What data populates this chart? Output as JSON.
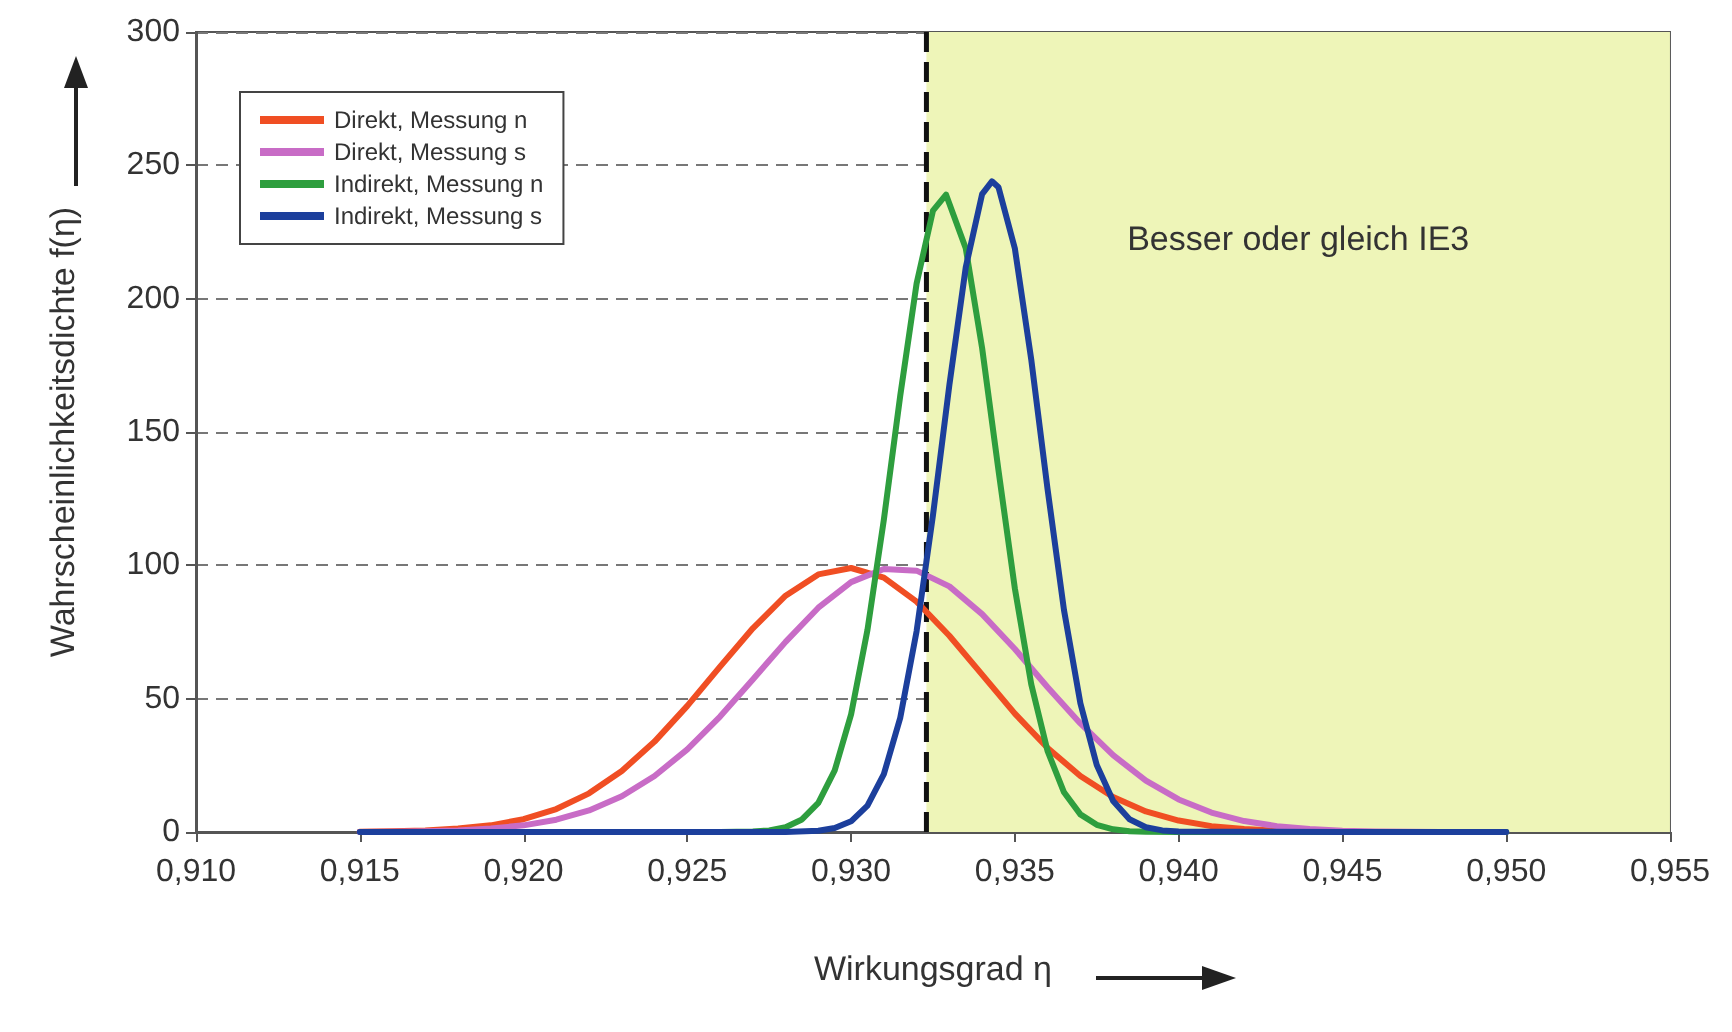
{
  "chart_data": {
    "type": "line",
    "xlabel": "Wirkungsgrad η",
    "ylabel": "Wahrscheinlichkeitsdichte f(η)",
    "xlim": [
      0.91,
      0.955
    ],
    "xticks": [
      {
        "value": 0.91,
        "label": "0,910"
      },
      {
        "value": 0.915,
        "label": "0,915"
      },
      {
        "value": 0.92,
        "label": "0,920"
      },
      {
        "value": 0.925,
        "label": "0,925"
      },
      {
        "value": 0.93,
        "label": "0,930"
      },
      {
        "value": 0.935,
        "label": "0,935"
      },
      {
        "value": 0.94,
        "label": "0,940"
      },
      {
        "value": 0.945,
        "label": "0,945"
      },
      {
        "value": 0.95,
        "label": "0,950"
      },
      {
        "value": 0.955,
        "label": "0,955"
      }
    ],
    "ylim": [
      0,
      300
    ],
    "yticks": [
      0,
      50,
      100,
      150,
      200,
      250,
      300
    ],
    "grid": "y",
    "legend": "top left",
    "marker": "none",
    "line_style": "solid",
    "series": [
      {
        "name": "Direkt, Messung n",
        "color": "#f04e23",
        "x": [
          0.915,
          0.916,
          0.917,
          0.918,
          0.919,
          0.92,
          0.921,
          0.922,
          0.923,
          0.924,
          0.925,
          0.926,
          0.927,
          0.928,
          0.929,
          0.93,
          0.931,
          0.932,
          0.933,
          0.934,
          0.935,
          0.936,
          0.937,
          0.938,
          0.939,
          0.94,
          0.941,
          0.942,
          0.943,
          0.944
        ],
        "values": [
          0.1,
          0.3,
          0.6,
          1.3,
          2.5,
          4.8,
          8.6,
          14.5,
          22.9,
          33.9,
          47.3,
          62,
          76.4,
          88.6,
          96.6,
          99,
          95.4,
          86.4,
          73.6,
          59,
          44.4,
          31.5,
          21,
          13.1,
          7.7,
          4.3,
          2.2,
          1.1,
          0.5,
          0.2
        ]
      },
      {
        "name": "Direkt, Messung s",
        "color": "#c86cc6",
        "x": [
          0.915,
          0.916,
          0.917,
          0.918,
          0.919,
          0.92,
          0.921,
          0.922,
          0.923,
          0.924,
          0.925,
          0.926,
          0.927,
          0.928,
          0.929,
          0.93,
          0.931,
          0.932,
          0.933,
          0.934,
          0.935,
          0.936,
          0.937,
          0.938,
          0.939,
          0.94,
          0.941,
          0.942,
          0.943,
          0.944,
          0.945,
          0.946,
          0.947,
          0.948,
          0.95
        ],
        "values": [
          0,
          0.1,
          0.3,
          0.6,
          1.3,
          2.5,
          4.6,
          8.1,
          13.4,
          21,
          31,
          43.3,
          57.2,
          71.3,
          84.1,
          93.7,
          98.6,
          98,
          92.1,
          81.7,
          68.6,
          54.3,
          40.7,
          28.8,
          19.3,
          12.2,
          7.3,
          4.1,
          2.2,
          1.1,
          0.5,
          0.2,
          0.1,
          0,
          0
        ]
      },
      {
        "name": "Indirekt, Messung n",
        "color": "#2e9e3e",
        "x": [
          0.926,
          0.927,
          0.9275,
          0.928,
          0.9285,
          0.929,
          0.9295,
          0.93,
          0.9305,
          0.931,
          0.9315,
          0.932,
          0.9325,
          0.9329,
          0.9335,
          0.934,
          0.9345,
          0.935,
          0.9355,
          0.936,
          0.9365,
          0.937,
          0.9375,
          0.938,
          0.9385,
          0.939,
          0.94,
          0.945,
          0.95
        ],
        "values": [
          0,
          0.2,
          0.6,
          1.8,
          4.7,
          10.9,
          23.1,
          44.1,
          75.8,
          117.1,
          163.6,
          205.7,
          233,
          239,
          218.9,
          181.5,
          135.6,
          91.3,
          55.4,
          30.3,
          14.9,
          6.6,
          2.7,
          1,
          0.3,
          0.1,
          0,
          0,
          0
        ]
      },
      {
        "name": "Indirekt, Messung s",
        "color": "#1c3f9c",
        "x": [
          0.915,
          0.92,
          0.925,
          0.928,
          0.929,
          0.9295,
          0.93,
          0.9305,
          0.931,
          0.9315,
          0.932,
          0.9325,
          0.933,
          0.9335,
          0.934,
          0.9343,
          0.9345,
          0.935,
          0.9355,
          0.936,
          0.9365,
          0.937,
          0.9375,
          0.938,
          0.9385,
          0.939,
          0.9395,
          0.94,
          0.945,
          0.95
        ],
        "values": [
          0,
          0,
          0,
          0,
          0.5,
          1.5,
          4,
          9.9,
          21.7,
          42.8,
          75.3,
          118.8,
          167.6,
          211.7,
          239.2,
          244,
          241.8,
          218.8,
          177.2,
          128.4,
          83.2,
          48.3,
          25.1,
          11.6,
          4.8,
          1.8,
          0.6,
          0.2,
          0,
          0
        ]
      }
    ],
    "bands": [
      {
        "axis": "x",
        "from": 0.9323,
        "to": 0.955,
        "label": "Besser oder gleich IE3",
        "color": "#eef5b8"
      }
    ],
    "ref_lines": [
      {
        "axis": "x",
        "value": 0.9323,
        "color": "#111111",
        "line_style": "dashed"
      }
    ]
  }
}
